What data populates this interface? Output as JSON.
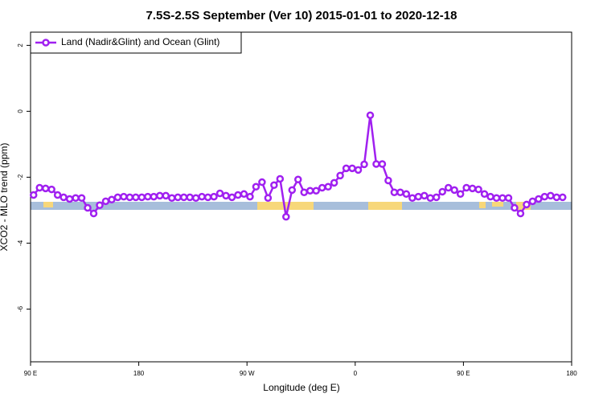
{
  "chart_data": {
    "type": "line",
    "title": "7.5S-2.5S September (Ver 10)   2015-01-01 to 2020-12-18",
    "x_label": "Longitude (deg E)",
    "y_label": "XCO2 - MLO trend (ppm)",
    "xlim": [
      90,
      540
    ],
    "xticks": [
      {
        "value": 90,
        "label": "90 E"
      },
      {
        "value": 180,
        "label": "180"
      },
      {
        "value": 270,
        "label": "90 W"
      },
      {
        "value": 360,
        "label": "0"
      },
      {
        "value": 450,
        "label": "90 E"
      },
      {
        "value": 540,
        "label": "180"
      }
    ],
    "ylim": [
      -7.6,
      2.4
    ],
    "yticks": [
      2,
      0,
      -2,
      -4,
      -6
    ],
    "legend": "top-left",
    "x": [
      92.5,
      97.5,
      102.5,
      107.5,
      112.5,
      117.5,
      122.5,
      127.5,
      132.5,
      137.5,
      142.5,
      147.5,
      152.5,
      157.5,
      162.5,
      167.5,
      172.5,
      177.5,
      182.5,
      187.5,
      192.5,
      197.5,
      202.5,
      207.5,
      212.5,
      217.5,
      222.5,
      227.5,
      232.5,
      237.5,
      242.5,
      247.5,
      252.5,
      257.5,
      262.5,
      267.5,
      272.5,
      277.5,
      282.5,
      287.5,
      292.5,
      297.5,
      302.5,
      307.5,
      312.5,
      317.5,
      322.5,
      327.5,
      332.5,
      337.5,
      342.5,
      347.5,
      352.5,
      357.5,
      362.5,
      367.5,
      372.5,
      377.5,
      382.5,
      387.5,
      392.5,
      397.5,
      402.5,
      407.5,
      412.5,
      417.5,
      422.5,
      427.5,
      432.5,
      437.5,
      442.5,
      447.5,
      452.5,
      457.5,
      462.5,
      467.5,
      472.5,
      477.5,
      482.5,
      487.5,
      492.5,
      497.5,
      502.5,
      507.5,
      512.5,
      517.5,
      522.5,
      527.5,
      532.5
    ],
    "series": [
      {
        "name": "Land (Nadir&Glint) and Ocean (Glint)",
        "color": "#a020f0",
        "values": [
          -2.54,
          -2.32,
          -2.34,
          -2.37,
          -2.54,
          -2.61,
          -2.66,
          -2.63,
          -2.63,
          -2.93,
          -3.1,
          -2.85,
          -2.73,
          -2.68,
          -2.61,
          -2.59,
          -2.61,
          -2.61,
          -2.61,
          -2.59,
          -2.59,
          -2.56,
          -2.56,
          -2.63,
          -2.61,
          -2.61,
          -2.61,
          -2.63,
          -2.59,
          -2.61,
          -2.59,
          -2.49,
          -2.56,
          -2.61,
          -2.54,
          -2.51,
          -2.59,
          -2.29,
          -2.15,
          -2.63,
          -2.24,
          -2.05,
          -3.2,
          -2.39,
          -2.07,
          -2.46,
          -2.41,
          -2.41,
          -2.32,
          -2.29,
          -2.17,
          -1.95,
          -1.73,
          -1.73,
          -1.78,
          -1.61,
          -0.12,
          -1.6,
          -1.6,
          -2.1,
          -2.46,
          -2.46,
          -2.51,
          -2.63,
          -2.59,
          -2.56,
          -2.63,
          -2.61,
          -2.44,
          -2.32,
          -2.39,
          -2.51,
          -2.32,
          -2.34,
          -2.37,
          -2.51,
          -2.59,
          -2.63,
          -2.63,
          -2.63,
          -2.93,
          -3.1,
          -2.83,
          -2.73,
          -2.66,
          -2.59,
          -2.56,
          -2.61,
          -2.61
        ]
      }
    ]
  }
}
